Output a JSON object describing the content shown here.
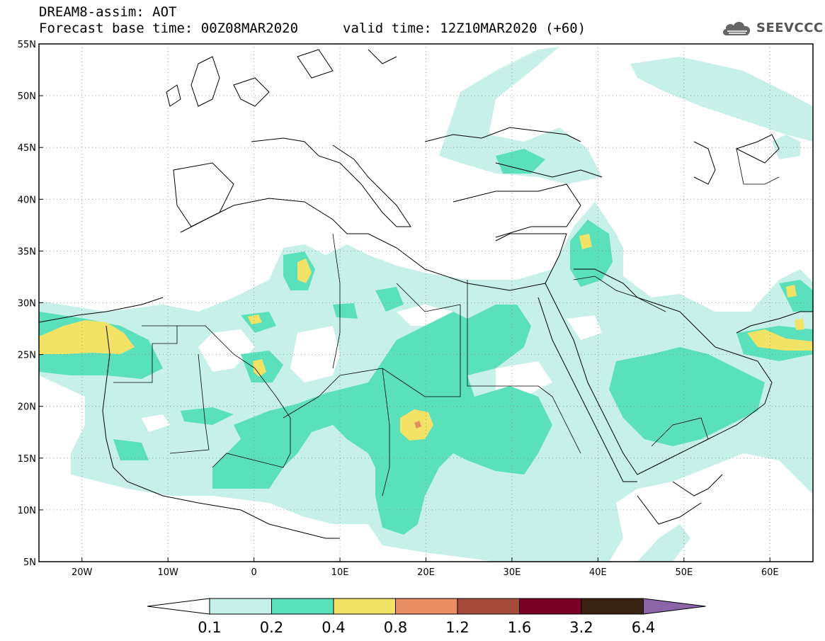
{
  "header": {
    "title": "DREAM8-assim: AOT",
    "base_time": "Forecast base time: 00Z08MAR2020",
    "valid_time": "valid time: 12Z10MAR2020 (+60)"
  },
  "logo": {
    "text": "SEEVCCC",
    "icon": "cloud-icon"
  },
  "map": {
    "lon_range": [
      -25,
      65
    ],
    "lat_range": [
      5,
      55
    ],
    "lat_labels": [
      "5N",
      "10N",
      "15N",
      "20N",
      "25N",
      "30N",
      "35N",
      "40N",
      "45N",
      "50N",
      "55N"
    ],
    "lon_labels": [
      "20W",
      "10W",
      "0",
      "10E",
      "20E",
      "30E",
      "40E",
      "50E",
      "60E"
    ],
    "grid": "dotted"
  },
  "colorbar": {
    "levels": [
      "0.1",
      "0.2",
      "0.4",
      "0.8",
      "1.2",
      "1.6",
      "3.2",
      "6.4"
    ],
    "colors": [
      "#ffffff",
      "#c6f0e8",
      "#5be0bc",
      "#f2e366",
      "#e88c64",
      "#a64a3c",
      "#7a0026",
      "#3c2414",
      "#8c64a8"
    ]
  }
}
